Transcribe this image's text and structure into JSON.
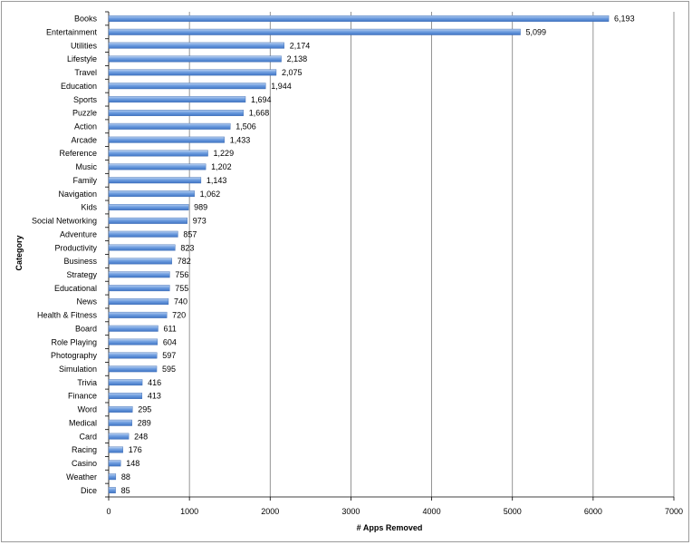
{
  "chart_data": {
    "type": "bar",
    "orientation": "horizontal",
    "title": "",
    "xlabel": "# Apps Removed",
    "ylabel": "Category",
    "xlim": [
      0,
      7000
    ],
    "xticks": [
      0,
      1000,
      2000,
      3000,
      4000,
      5000,
      6000,
      7000
    ],
    "grid": "vertical",
    "bar_color": "#5b8fd6",
    "categories": [
      "Books",
      "Entertainment",
      "Utilities",
      "Lifestyle",
      "Travel",
      "Education",
      "Sports",
      "Puzzle",
      "Action",
      "Arcade",
      "Reference",
      "Music",
      "Family",
      "Navigation",
      "Kids",
      "Social Networking",
      "Adventure",
      "Productivity",
      "Business",
      "Strategy",
      "Educational",
      "News",
      "Health & Fitness",
      "Board",
      "Role Playing",
      "Photography",
      "Simulation",
      "Trivia",
      "Finance",
      "Word",
      "Medical",
      "Card",
      "Racing",
      "Casino",
      "Weather",
      "Dice"
    ],
    "values": [
      6193,
      5099,
      2174,
      2138,
      2075,
      1944,
      1694,
      1668,
      1506,
      1433,
      1229,
      1202,
      1143,
      1062,
      989,
      973,
      857,
      823,
      782,
      756,
      755,
      740,
      720,
      611,
      604,
      597,
      595,
      416,
      413,
      295,
      289,
      248,
      176,
      148,
      88,
      85
    ],
    "value_labels": [
      "6,193",
      "5,099",
      "2,174",
      "2,138",
      "2,075",
      "1,944",
      "1,694",
      "1,668",
      "1,506",
      "1,433",
      "1,229",
      "1,202",
      "1,143",
      "1,062",
      "989",
      "973",
      "857",
      "823",
      "782",
      "756",
      "755",
      "740",
      "720",
      "611",
      "604",
      "597",
      "595",
      "416",
      "413",
      "295",
      "289",
      "248",
      "176",
      "148",
      "88",
      "85"
    ]
  }
}
